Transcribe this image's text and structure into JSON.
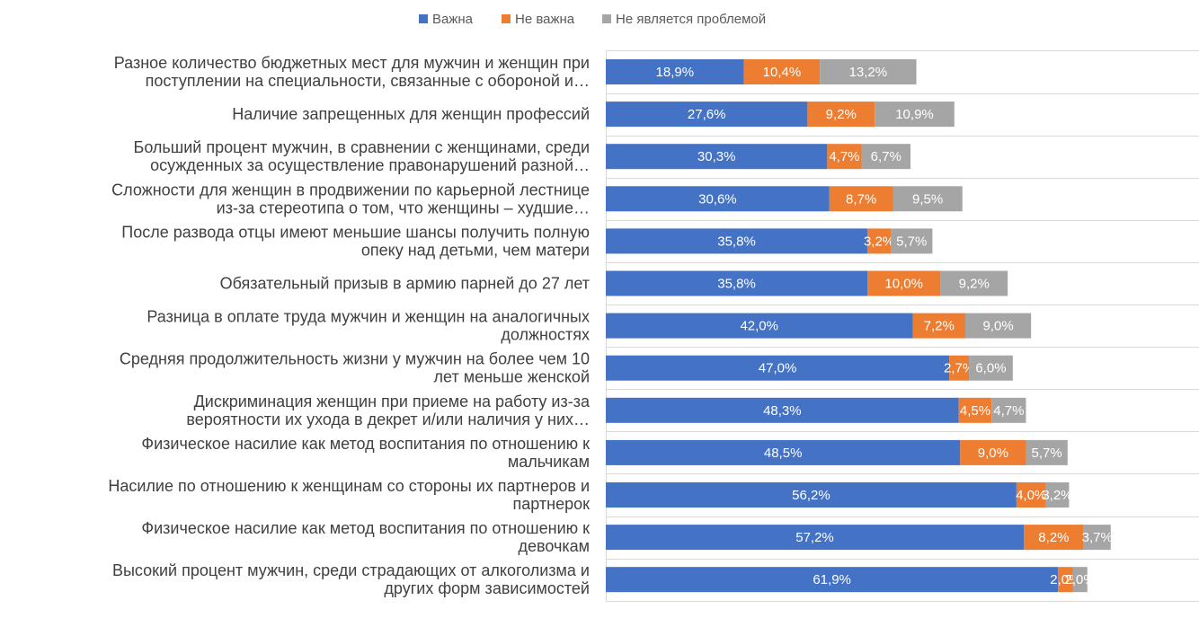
{
  "chart_data": {
    "type": "bar",
    "orientation": "horizontal",
    "stacked": true,
    "legend_position": "top",
    "grid": true,
    "xlim": [
      0,
      100
    ],
    "categories": [
      [
        "Разное количество бюджетных мест для мужчин и женщин при",
        "поступлении на специальности, связанные с обороной и…"
      ],
      [
        "Наличие запрещенных для женщин профессий"
      ],
      [
        "Больший процент мужчин, в сравнении с женщинами, среди",
        "осужденных за осуществление правонарушений разной…"
      ],
      [
        "Сложности для женщин в продвижении по карьерной лестнице",
        "из-за стереотипа о том, что женщины – худшие…"
      ],
      [
        "После развода отцы имеют меньшие шансы получить полную",
        "опеку над детьми, чем матери"
      ],
      [
        "Обязательный призыв в армию парней до 27 лет"
      ],
      [
        "Разница в оплате труда мужчин и женщин на аналогичных",
        "должностях"
      ],
      [
        "Средняя продолжительность жизни у мужчин на более чем 10",
        "лет меньше женской"
      ],
      [
        "Дискриминация женщин при приеме на работу из-за",
        "вероятности их ухода в декрет и/или наличия у них…"
      ],
      [
        "Физическое насилие как метод воспитания по отношению к",
        "мальчикам"
      ],
      [
        "Насилие по отношению к женщинам со стороны их партнеров и",
        "партнерок"
      ],
      [
        "Физическое насилие как метод воспитания по отношению к",
        "девочкам"
      ],
      [
        "Высокий процент мужчин, среди страдающих от алкоголизма и",
        "других форм зависимостей"
      ]
    ],
    "series": [
      {
        "name": "Важна",
        "color": "#4472C4",
        "values": [
          18.9,
          27.6,
          30.3,
          30.6,
          35.8,
          35.8,
          42.0,
          47.0,
          48.3,
          48.5,
          56.2,
          57.2,
          61.9
        ],
        "labels": [
          "18,9%",
          "27,6%",
          "30,3%",
          "30,6%",
          "35,8%",
          "35,8%",
          "42,0%",
          "47,0%",
          "48,3%",
          "48,5%",
          "56,2%",
          "57,2%",
          "61,9%"
        ]
      },
      {
        "name": "Не важна",
        "color": "#ED7D31",
        "values": [
          10.4,
          9.2,
          4.7,
          8.7,
          3.2,
          10.0,
          7.2,
          2.7,
          4.5,
          9.0,
          4.0,
          8.2,
          2.0
        ],
        "labels": [
          "10,4%",
          "9,2%",
          "4,7%",
          "8,7%",
          "3,2%",
          "10,0%",
          "7,2%",
          "2,7%",
          "4,5%",
          "9,0%",
          "4,0%",
          "8,2%",
          "2,0%"
        ]
      },
      {
        "name": "Не является проблемой",
        "color": "#A5A5A5",
        "values": [
          13.2,
          10.9,
          6.7,
          9.5,
          5.7,
          9.2,
          9.0,
          6.0,
          4.7,
          5.7,
          3.2,
          3.7,
          2.0
        ],
        "labels": [
          "13,2%",
          "10,9%",
          "6,7%",
          "9,5%",
          "5,7%",
          "9,2%",
          "9,0%",
          "6,0%",
          "4,7%",
          "5,7%",
          "3,2%",
          "3,7%",
          "2,0%"
        ]
      }
    ]
  }
}
